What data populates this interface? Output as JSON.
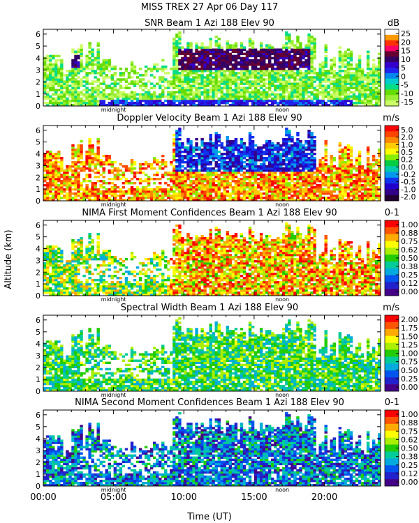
{
  "title": "MISS TREX   27 Apr 06 Day 117",
  "xlabel": "Time (UT)",
  "ylabel": "Altitude (km)",
  "markers": {
    "midnight_label": "midnight",
    "noon_label": "noon",
    "midnight_hour": 5.0,
    "noon_hour": 17.0
  },
  "chart_data": [
    {
      "type": "heatmap",
      "title": "SNR Beam 1 Azi 188 Elev 90",
      "unit": "dB",
      "xlim": [
        0,
        24
      ],
      "ylim": [
        0,
        6.4
      ],
      "yticks": [
        "0",
        "1",
        "2",
        "3",
        "4",
        "5",
        "6"
      ],
      "colorbar_ticks": [
        "25",
        "20",
        "15",
        "10",
        "5",
        "0",
        "-5",
        "-10",
        "-15"
      ],
      "colorbar_colors": [
        "#ffffff",
        "#ff9900",
        "#ff3300",
        "#ff0066",
        "#660033",
        "#330066",
        "#3300cc",
        "#2222ee",
        "#0088ee",
        "#00cccc",
        "#00dd88",
        "#66dd00",
        "#99ee33",
        "#ccff66"
      ]
    },
    {
      "type": "heatmap",
      "title": "Doppler Velocity Beam 1 Azi 188 Elev 90",
      "unit": "m/s",
      "xlim": [
        0,
        24
      ],
      "ylim": [
        0,
        6.4
      ],
      "yticks": [
        "0",
        "1",
        "2",
        "3",
        "4",
        "5",
        "6"
      ],
      "colorbar_ticks": [
        "5.0",
        "2.0",
        "1.0",
        "0.5",
        "0.2",
        "0.0",
        "-0.2",
        "-0.5",
        "-1.0",
        "-2.0"
      ],
      "colorbar_colors": [
        "#ff0000",
        "#ff4400",
        "#ff8800",
        "#ffcc00",
        "#ffff00",
        "#88ee00",
        "#00cc44",
        "#00ccaa",
        "#0099ee",
        "#1133ee",
        "#2200cc",
        "#330088",
        "#220033"
      ]
    },
    {
      "type": "heatmap",
      "title": "NIMA First Moment Confidences Beam 1 Azi 188 Elev 90",
      "unit": "0-1",
      "xlim": [
        0,
        24
      ],
      "ylim": [
        0,
        6.4
      ],
      "yticks": [
        "0",
        "1",
        "2",
        "3",
        "4",
        "5",
        "6"
      ],
      "colorbar_ticks": [
        "1.00",
        "0.88",
        "0.75",
        "0.62",
        "0.50",
        "0.38",
        "0.25",
        "0.12",
        "0.00"
      ],
      "colorbar_colors": [
        "#ff0000",
        "#ff5500",
        "#ffaa00",
        "#ffff00",
        "#aaee00",
        "#22cc00",
        "#00cc99",
        "#00aadd",
        "#0055ee",
        "#2222cc",
        "#440088"
      ]
    },
    {
      "type": "heatmap",
      "title": "Spectral Width Beam 1 Azi 188 Elev 90",
      "unit": "m/s",
      "xlim": [
        0,
        24
      ],
      "ylim": [
        0,
        6.4
      ],
      "yticks": [
        "0",
        "1",
        "2",
        "3",
        "4",
        "5",
        "6"
      ],
      "colorbar_ticks": [
        "2.00",
        "1.75",
        "1.50",
        "1.25",
        "1.00",
        "0.75",
        "0.50",
        "0.25",
        "0.00"
      ],
      "colorbar_colors": [
        "#ff0000",
        "#ff5500",
        "#ffaa00",
        "#ffff00",
        "#aaee00",
        "#22cc00",
        "#00cc99",
        "#00aadd",
        "#0055ee",
        "#2222cc",
        "#440088"
      ]
    },
    {
      "type": "heatmap",
      "title": "NIMA Second Moment Confidences Beam 1 Azi 188 Elev 90",
      "unit": "0-1",
      "xlim": [
        0,
        24
      ],
      "ylim": [
        0,
        6.4
      ],
      "yticks": [
        "0",
        "1",
        "2",
        "3",
        "4",
        "5",
        "6"
      ],
      "colorbar_ticks": [
        "1.00",
        "0.88",
        "0.75",
        "0.62",
        "0.50",
        "0.38",
        "0.25",
        "0.12",
        "0.00"
      ],
      "colorbar_colors": [
        "#ff0000",
        "#ff5500",
        "#ffaa00",
        "#ffff00",
        "#aaee00",
        "#22cc00",
        "#00cc99",
        "#00aadd",
        "#0055ee",
        "#2222cc",
        "#440088"
      ]
    }
  ],
  "x_axis": {
    "ticks": [
      {
        "hour": 0,
        "label": "00:00"
      },
      {
        "hour": 5,
        "label": "05:00"
      },
      {
        "hour": 10,
        "label": "10:00"
      },
      {
        "hour": 15,
        "label": "15:00"
      },
      {
        "hour": 20,
        "label": "20:00"
      }
    ]
  }
}
